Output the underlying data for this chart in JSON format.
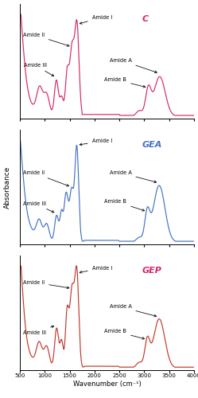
{
  "xmin": 500,
  "xmax": 4000,
  "colors": {
    "C": "#d4286a",
    "GEA": "#4472c4",
    "GEP": "#c0392b"
  },
  "xlabel": "Wavenumber (cm⁻¹)",
  "ylabel": "Absorbance",
  "label_colors": {
    "C": "#d4286a",
    "GEA": "#4472c4",
    "GEP": "#d4286a"
  },
  "xticks": [
    500,
    1000,
    1500,
    2000,
    2500,
    3000,
    3500,
    4000
  ],
  "xtick_labels": [
    "500",
    "1000",
    "1500",
    "2000",
    "2500",
    "3000",
    "3500",
    "4000"
  ]
}
